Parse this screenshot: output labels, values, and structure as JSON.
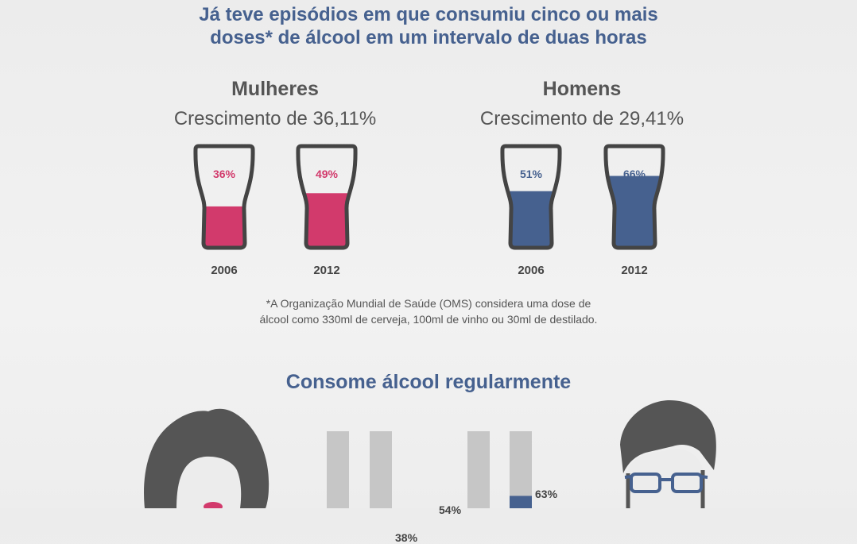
{
  "title_line1": "Já teve episódios em que consumiu cinco ou mais",
  "title_line2": "doses* de álcool em um intervalo de duas horas",
  "women": {
    "title": "Mulheres",
    "subtitle": "Crescimento de 36,11%"
  },
  "men": {
    "title": "Homens",
    "subtitle": "Crescimento de 29,41%"
  },
  "note_line1": "*A Organização Mundial de Saúde (OMS) considera uma dose de",
  "note_line2": "álcool como 330ml de cerveja, 100ml de vinho ou 30ml de destilado.",
  "section2_title": "Consome álcool regularmente",
  "colors": {
    "women": "#d23a6c",
    "men": "#46618f",
    "glass_outline": "#444444",
    "bar_track": "#c6c6c6",
    "face": "#555555"
  },
  "chart_data": [
    {
      "type": "bar",
      "title": "Já teve episódios em que consumiu cinco ou mais doses* de álcool em um intervalo de duas horas",
      "groups": [
        "Mulheres",
        "Homens"
      ],
      "categories": [
        "2006",
        "2012"
      ],
      "series": [
        {
          "name": "Mulheres",
          "values": [
            36,
            49
          ],
          "labels": [
            "36%",
            "49%"
          ]
        },
        {
          "name": "Homens",
          "values": [
            51,
            66
          ],
          "labels": [
            "51%",
            "66%"
          ]
        }
      ],
      "ylim": [
        0,
        100
      ]
    },
    {
      "type": "bar",
      "title": "Consome álcool regularmente",
      "series": [
        {
          "values": [
            null,
            38
          ],
          "labels": [
            "",
            "38%"
          ]
        },
        {
          "values": [
            54,
            63
          ],
          "labels": [
            "54%",
            "63%"
          ]
        }
      ],
      "ylim": [
        0,
        100
      ]
    }
  ]
}
